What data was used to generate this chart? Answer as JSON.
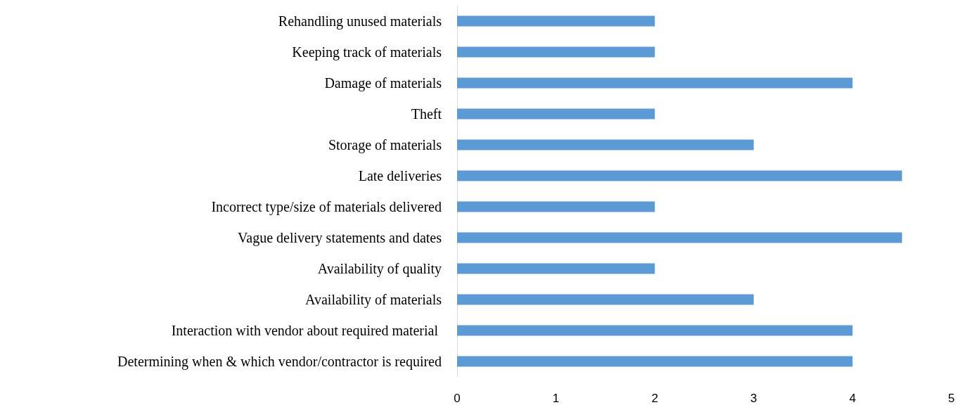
{
  "chart_data": {
    "type": "bar",
    "orientation": "horizontal",
    "categories": [
      "Rehandling unused materials",
      "Keeping track of materials",
      "Damage of materials",
      "Theft",
      "Storage of materials",
      "Late deliveries",
      "Incorrect type/size of materials delivered",
      "Vague delivery statements and dates",
      "Availability of quality",
      "Availability of materials",
      "Interaction with vendor about required material ",
      "Determining when & which vendor/contractor is required"
    ],
    "values": [
      2,
      2,
      4,
      2,
      3,
      4.5,
      2,
      4.5,
      2,
      3,
      4,
      4
    ],
    "color": "#5b9bd5",
    "xlim": [
      0,
      5
    ],
    "xticks": [
      0,
      1,
      2,
      3,
      4,
      5
    ],
    "grid": false
  }
}
